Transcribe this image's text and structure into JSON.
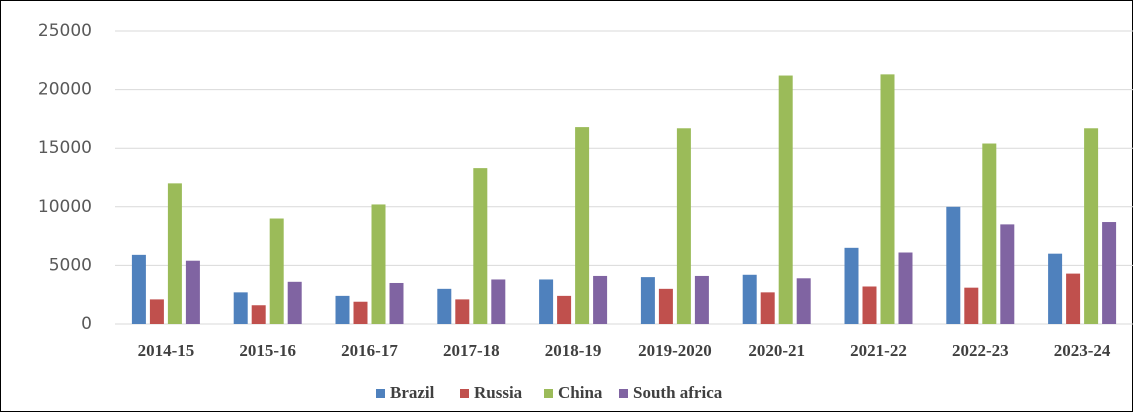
{
  "chart_data": {
    "type": "bar",
    "categories": [
      "2014-15",
      "2015-16",
      "2016-17",
      "2017-18",
      "2018-19",
      "2019-2020",
      "2020-21",
      "2021-22",
      "2022-23",
      "2023-24"
    ],
    "series": [
      {
        "name": "Brazil",
        "color": "#4f81bd",
        "values": [
          5900,
          2700,
          2400,
          3000,
          3800,
          4000,
          4200,
          6500,
          10000,
          6000
        ]
      },
      {
        "name": "Russia",
        "color": "#c0504d",
        "values": [
          2100,
          1600,
          1900,
          2100,
          2400,
          3000,
          2700,
          3200,
          3100,
          4300
        ]
      },
      {
        "name": "China",
        "color": "#9bbb59",
        "values": [
          12000,
          9000,
          10200,
          13300,
          16800,
          16700,
          21200,
          21300,
          15400,
          16700
        ]
      },
      {
        "name": "South africa",
        "color": "#8064a2",
        "values": [
          5400,
          3600,
          3500,
          3800,
          4100,
          4100,
          3900,
          6100,
          8500,
          8700
        ]
      }
    ],
    "ylim": [
      0,
      25000
    ],
    "yticks": [
      0,
      5000,
      10000,
      15000,
      20000,
      25000
    ],
    "grid": true,
    "legend": "bottom"
  }
}
